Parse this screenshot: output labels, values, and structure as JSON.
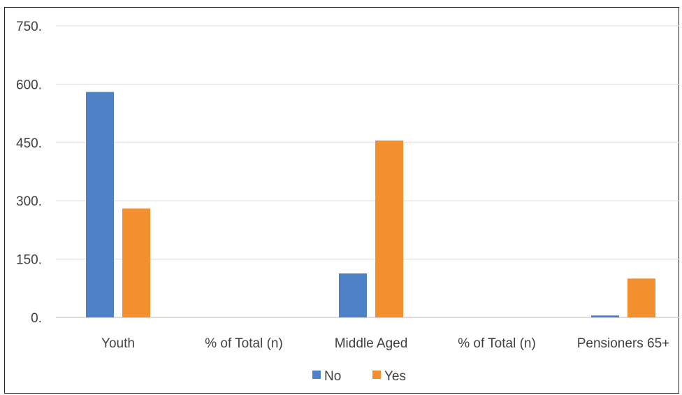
{
  "chart_data": {
    "type": "bar",
    "title": "",
    "xlabel": "",
    "ylabel": "",
    "categories": [
      "Youth",
      "% of Total (n)",
      "Middle Aged",
      "% of Total (n)",
      "Pensioners 65+"
    ],
    "series": [
      {
        "name": "No",
        "color": "#4f81c7",
        "values": [
          580,
          0,
          113,
          0,
          5
        ]
      },
      {
        "name": "Yes",
        "color": "#f2902f",
        "values": [
          280,
          0,
          455,
          0,
          100
        ]
      }
    ],
    "ylim": [
      0,
      750
    ],
    "yticks": [
      0,
      150,
      300,
      450,
      600,
      750
    ],
    "ytick_labels": [
      "0.",
      "150.",
      "300.",
      "450.",
      "600.",
      "750."
    ],
    "grid": true,
    "legend_position": "bottom"
  }
}
